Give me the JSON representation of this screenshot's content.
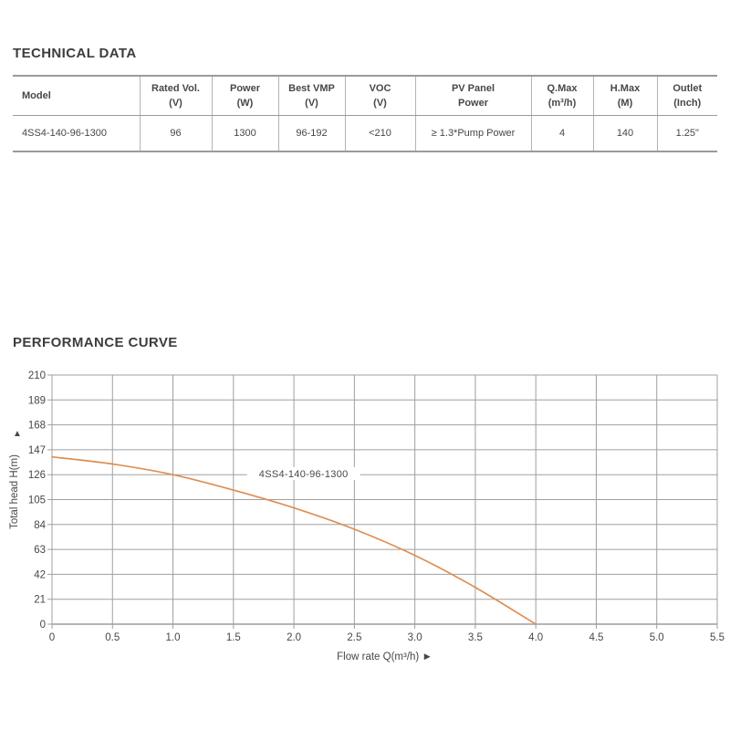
{
  "page": {
    "background": "#ffffff"
  },
  "sections": {
    "technical_data": {
      "heading": "TECHNICAL DATA"
    },
    "performance_curve": {
      "heading": "PERFORMANCE CURVE"
    }
  },
  "table": {
    "columns": [
      {
        "label": "Model",
        "sub": ""
      },
      {
        "label": "Rated Vol.",
        "sub": "(V)"
      },
      {
        "label": "Power",
        "sub": "(W)"
      },
      {
        "label": "Best VMP",
        "sub": "(V)"
      },
      {
        "label": "VOC",
        "sub": "(V)"
      },
      {
        "label": "PV Panel",
        "sub": "Power"
      },
      {
        "label": "Q.Max",
        "sub": "(m³/h)"
      },
      {
        "label": "H.Max",
        "sub": "(M)"
      },
      {
        "label": "Outlet",
        "sub": "(Inch)"
      }
    ],
    "rows": [
      {
        "model": "4SS4-140-96-1300",
        "rated_vol": "96",
        "power": "1300",
        "best_vmp": "96-192",
        "voc": "<210",
        "pv_panel_power": "≥ 1.3*Pump Power",
        "q_max": "4",
        "h_max": "140",
        "outlet": "1.25\""
      }
    ]
  },
  "chart_data": {
    "type": "line",
    "title": "",
    "series": [
      {
        "name": "4SS4-140-96-1300",
        "x": [
          0,
          0.5,
          1.0,
          1.5,
          2.0,
          2.5,
          3.0,
          3.5,
          4.0
        ],
        "values": [
          141,
          135,
          126,
          113,
          98,
          80,
          58,
          31,
          0
        ]
      }
    ],
    "xlabel": "Flow rate Q(m³/h)",
    "xlabel_arrow": "►",
    "ylabel": "Total head H(m)",
    "ylabel_arrow": "▲",
    "xlim": [
      0,
      5.5
    ],
    "ylim": [
      0,
      210
    ],
    "xticks": [
      0,
      0.5,
      1,
      1.5,
      2,
      2.5,
      3,
      3.5,
      4,
      4.5,
      5,
      5.5
    ],
    "xtick_labels": [
      "0",
      "0.5",
      "1.0",
      "1.5",
      "2.0",
      "2.5",
      "3.0",
      "3.5",
      "4.0",
      "4.5",
      "5.0",
      "5.5"
    ],
    "yticks": [
      0,
      21,
      42,
      63,
      84,
      105,
      126,
      147,
      168,
      189,
      210
    ],
    "grid": true,
    "legend_position": "label-on-line",
    "series_label_at": {
      "x": 2.08,
      "y": 127
    },
    "colors": {
      "curve": "#DE8E52",
      "grid": "#9f9f9f",
      "axis_zero": "#b5b5b5",
      "text": "#474747"
    }
  }
}
